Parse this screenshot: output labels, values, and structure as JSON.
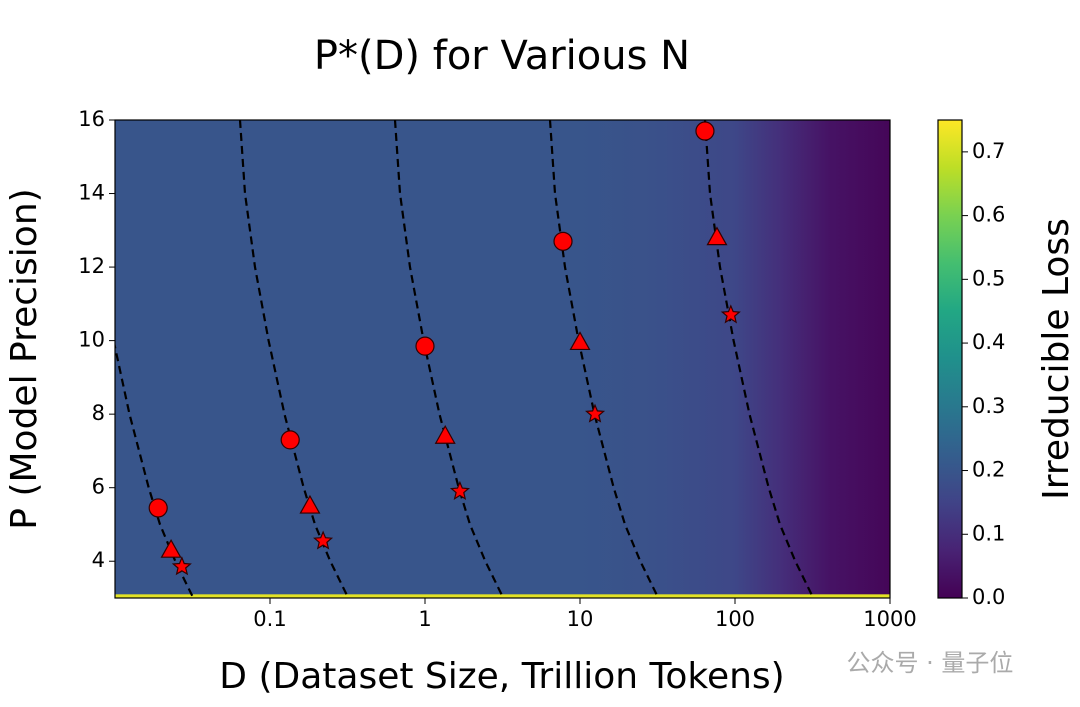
{
  "chart_data": {
    "type": "heatmap-lines",
    "title": "P*(D) for Various N",
    "xlabel": "D (Dataset Size, Trillion Tokens)",
    "ylabel": "P (Model Precision)",
    "xscale": "log",
    "xlim": [
      0.01,
      1000
    ],
    "xticks": [
      0.1,
      1,
      10,
      100,
      1000
    ],
    "ylim": [
      3,
      16
    ],
    "yticks": [
      4,
      6,
      8,
      10,
      12,
      14,
      16
    ],
    "colorbar": {
      "label": "Irreducible Loss",
      "colormap": "viridis",
      "lim": [
        0,
        0.75
      ],
      "ticks": [
        0.0,
        0.1,
        0.2,
        0.3,
        0.4,
        0.5,
        0.6,
        0.7
      ]
    },
    "heatmap": {
      "x": [
        0.01,
        10,
        30,
        100,
        200,
        400,
        1000
      ],
      "values": [
        0.2,
        0.2,
        0.19,
        0.16,
        0.1,
        0.04,
        0.01
      ],
      "low_band": {
        "y": [
          3,
          3.1
        ],
        "value": 0.72
      }
    },
    "curves": [
      {
        "x": [
          0.0098,
          0.0124,
          0.0165,
          0.0195,
          0.0245,
          0.028,
          0.032
        ],
        "y": [
          10,
          8,
          6,
          5,
          4,
          3.5,
          3
        ]
      },
      {
        "x": [
          0.064,
          0.069,
          0.08,
          0.098,
          0.124,
          0.165,
          0.195,
          0.245,
          0.28,
          0.32
        ],
        "y": [
          16,
          14,
          12,
          10,
          8,
          6,
          5,
          4,
          3.5,
          3
        ]
      },
      {
        "x": [
          0.64,
          0.69,
          0.8,
          0.98,
          1.24,
          1.65,
          1.95,
          2.45,
          2.8,
          3.2
        ],
        "y": [
          16,
          14,
          12,
          10,
          8,
          6,
          5,
          4,
          3.5,
          3
        ]
      },
      {
        "x": [
          6.4,
          6.9,
          8,
          9.8,
          12.4,
          16.5,
          19.5,
          24.5,
          28,
          32
        ],
        "y": [
          16,
          14,
          12,
          10,
          8,
          6,
          5,
          4,
          3.5,
          3
        ]
      },
      {
        "x": [
          64,
          69,
          80,
          98,
          124,
          165,
          195,
          245,
          280,
          320
        ],
        "y": [
          16,
          14,
          12,
          10,
          8,
          6,
          5,
          4,
          3.5,
          3
        ]
      }
    ],
    "markers": [
      {
        "shape": "circle",
        "color": "#ff0000",
        "x": [
          0.019,
          0.135,
          1.0,
          7.77,
          64
        ],
        "y": [
          5.45,
          7.3,
          9.85,
          12.7,
          15.7
        ]
      },
      {
        "shape": "triangle",
        "color": "#ff0000",
        "x": [
          0.023,
          0.181,
          1.35,
          10,
          76.5
        ],
        "y": [
          4.3,
          5.5,
          7.4,
          9.95,
          12.8
        ]
      },
      {
        "shape": "star",
        "color": "#ff0000",
        "x": [
          0.027,
          0.22,
          1.68,
          12.5,
          94
        ],
        "y": [
          3.85,
          4.55,
          5.9,
          8.0,
          10.7
        ]
      }
    ],
    "watermark": "公众号 · 量子位"
  }
}
